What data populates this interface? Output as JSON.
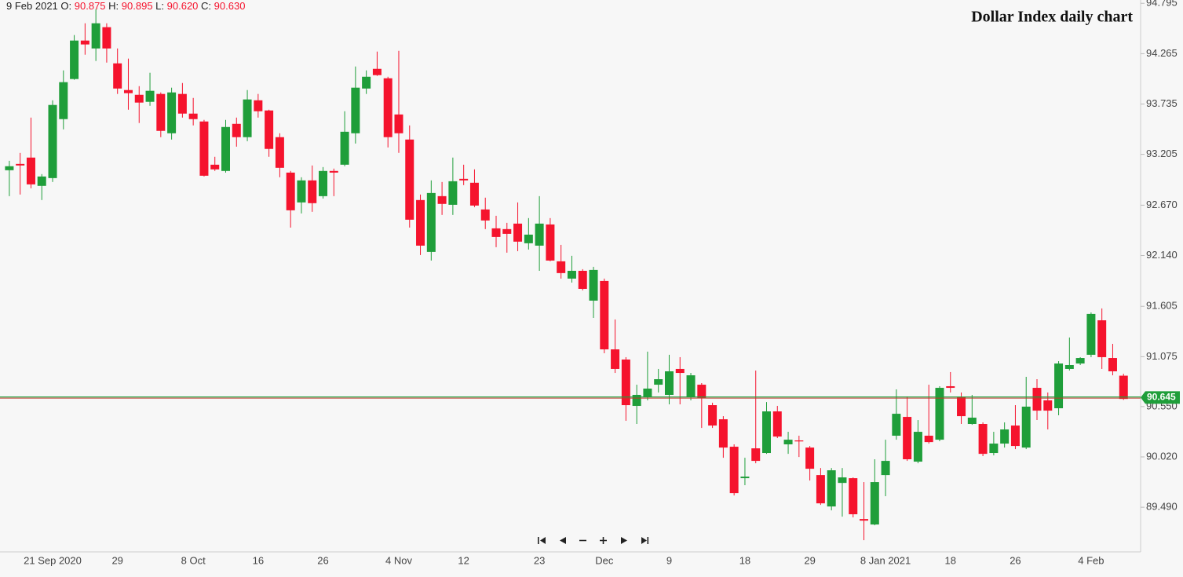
{
  "chart_data": {
    "type": "candlestick",
    "title": "Dollar Index daily chart",
    "ohlc_header": {
      "date": "9 Feb 2021",
      "fields": [
        {
          "label": "O:",
          "value": "90.875"
        },
        {
          "label": "H:",
          "value": "90.895"
        },
        {
          "label": "L:",
          "value": "90.620"
        },
        {
          "label": "C:",
          "value": "90.630"
        }
      ]
    },
    "categories": [
      null,
      null,
      null,
      null,
      "21 Sep 2020",
      null,
      null,
      null,
      null,
      null,
      "29",
      null,
      null,
      null,
      null,
      null,
      null,
      "8 Oct",
      null,
      null,
      null,
      null,
      null,
      "16",
      null,
      null,
      null,
      null,
      null,
      "26",
      null,
      null,
      null,
      null,
      null,
      null,
      "4 Nov",
      null,
      null,
      null,
      null,
      null,
      "12",
      null,
      null,
      null,
      null,
      null,
      null,
      "23",
      null,
      null,
      null,
      null,
      null,
      "Dec",
      null,
      null,
      null,
      null,
      null,
      "9",
      null,
      null,
      null,
      null,
      null,
      null,
      "18",
      null,
      null,
      null,
      null,
      null,
      "29",
      null,
      null,
      null,
      null,
      null,
      null,
      "8 Jan 2021",
      null,
      null,
      null,
      null,
      null,
      "18",
      null,
      null,
      null,
      null,
      null,
      "26",
      null,
      null,
      null,
      null,
      null,
      null,
      "4 Feb",
      null,
      null,
      null
    ],
    "open": [
      93.038,
      93.104,
      93.171,
      92.873,
      92.955,
      93.576,
      93.998,
      94.403,
      94.32,
      94.544,
      94.163,
      93.882,
      93.832,
      93.758,
      93.841,
      93.427,
      93.841,
      93.634,
      93.551,
      93.096,
      93.03,
      93.526,
      93.386,
      93.774,
      93.667,
      93.386,
      93.013,
      92.699,
      92.931,
      92.765,
      93.03,
      93.096,
      93.427,
      93.898,
      94.105,
      94.006,
      93.625,
      93.361,
      92.724,
      92.178,
      92.765,
      92.674,
      92.947,
      92.906,
      92.625,
      92.426,
      92.418,
      92.476,
      92.269,
      92.244,
      92.467,
      92.079,
      91.897,
      91.979,
      91.665,
      91.872,
      91.152,
      91.045,
      90.557,
      90.648,
      90.78,
      90.673,
      90.946,
      90.648,
      90.78,
      90.565,
      90.416,
      90.127,
      89.796,
      90.11,
      90.061,
      90.499,
      90.152,
      90.193,
      90.118,
      89.829,
      89.498,
      89.746,
      89.796,
      89.366,
      89.308,
      89.829,
      90.243,
      90.441,
      89.97,
      90.243,
      90.201,
      90.764,
      90.648,
      90.367,
      90.367,
      90.061,
      90.16,
      90.35,
      90.118,
      90.747,
      90.615,
      90.532,
      90.946,
      91.003,
      91.095,
      91.458,
      91.061,
      90.875
    ],
    "high": [
      93.137,
      93.22,
      93.592,
      92.997,
      93.774,
      94.089,
      94.461,
      94.585,
      94.734,
      94.585,
      94.32,
      94.213,
      93.923,
      94.064,
      93.857,
      93.907,
      93.956,
      93.799,
      93.568,
      93.179,
      93.568,
      93.592,
      93.882,
      93.841,
      93.675,
      93.427,
      93.03,
      92.964,
      93.088,
      93.071,
      93.055,
      93.659,
      94.13,
      94.089,
      94.287,
      94.022,
      94.295,
      93.51,
      92.782,
      92.931,
      92.914,
      93.171,
      93.096,
      93.047,
      92.749,
      92.558,
      92.484,
      92.699,
      92.534,
      92.765,
      92.534,
      92.252,
      92.137,
      91.996,
      92.021,
      91.897,
      91.467,
      91.07,
      90.78,
      91.128,
      90.946,
      91.095,
      91.07,
      90.904,
      90.797,
      90.59,
      90.449,
      90.152,
      90.011,
      90.929,
      90.598,
      90.557,
      90.284,
      90.243,
      90.135,
      89.903,
      89.903,
      89.903,
      89.804,
      89.755,
      89.995,
      90.201,
      90.731,
      90.656,
      90.408,
      90.78,
      90.764,
      90.913,
      90.698,
      90.673,
      90.383,
      90.284,
      90.383,
      90.565,
      90.863,
      90.838,
      90.698,
      91.028,
      91.277,
      91.07,
      91.541,
      91.583,
      91.21,
      90.895
    ],
    "low": [
      92.765,
      92.782,
      92.848,
      92.724,
      92.914,
      93.468,
      93.99,
      94.254,
      94.188,
      94.171,
      93.841,
      93.675,
      93.535,
      93.716,
      93.386,
      93.361,
      93.592,
      93.51,
      92.972,
      93.03,
      93.013,
      93.286,
      93.344,
      93.592,
      93.179,
      92.964,
      92.434,
      92.583,
      92.6,
      92.74,
      92.765,
      93.08,
      93.319,
      93.841,
      94.031,
      93.278,
      93.22,
      92.434,
      92.145,
      92.087,
      92.567,
      92.567,
      92.881,
      92.65,
      92.418,
      92.228,
      92.17,
      92.186,
      92.203,
      91.979,
      92.079,
      91.897,
      91.855,
      91.773,
      91.483,
      91.111,
      90.904,
      90.4,
      90.367,
      90.615,
      90.698,
      90.573,
      90.573,
      90.615,
      90.325,
      90.325,
      90.011,
      89.614,
      89.722,
      89.953,
      90.052,
      90.218,
      90.052,
      90.019,
      89.771,
      89.515,
      89.457,
      89.391,
      89.383,
      89.143,
      89.3,
      89.606,
      90.201,
      89.978,
      89.953,
      90.16,
      90.185,
      90.698,
      90.367,
      90.358,
      90.028,
      90.036,
      90.118,
      90.102,
      90.102,
      90.408,
      90.309,
      90.458,
      90.929,
      90.987,
      91.07,
      90.946,
      90.879,
      90.62
    ],
    "close": [
      93.08,
      93.088,
      92.889,
      92.972,
      93.725,
      93.965,
      94.403,
      94.362,
      94.585,
      94.32,
      93.898,
      93.849,
      93.75,
      93.874,
      93.452,
      93.857,
      93.634,
      93.576,
      92.98,
      93.047,
      93.493,
      93.386,
      93.783,
      93.659,
      93.262,
      93.063,
      92.616,
      92.931,
      92.691,
      93.03,
      93.013,
      93.443,
      93.907,
      94.022,
      94.039,
      93.386,
      93.427,
      92.517,
      92.244,
      92.798,
      92.683,
      92.922,
      92.931,
      92.666,
      92.509,
      92.335,
      92.368,
      92.286,
      92.36,
      92.476,
      92.087,
      91.955,
      91.979,
      91.789,
      91.988,
      91.152,
      90.946,
      90.565,
      90.673,
      90.739,
      90.838,
      90.921,
      90.904,
      90.879,
      90.64,
      90.35,
      90.118,
      89.639,
      89.812,
      89.978,
      90.499,
      90.234,
      90.201,
      90.185,
      89.895,
      89.531,
      89.879,
      89.804,
      89.416,
      89.349,
      89.755,
      89.978,
      90.474,
      89.995,
      90.284,
      90.176,
      90.747,
      90.747,
      90.449,
      90.433,
      90.052,
      90.16,
      90.309,
      90.135,
      90.549,
      90.507,
      90.507,
      91.003,
      90.987,
      91.061,
      91.525,
      91.07,
      90.921,
      90.63
    ],
    "up_color": "#1f9e3a",
    "down_color": "#f5132d",
    "last_price": 90.645,
    "ylim": [
      89.02,
      94.83
    ],
    "yticks": [
      94.795,
      94.265,
      93.735,
      93.205,
      {
        "value": 92.67,
        "label": "92.670"
      },
      {
        "value": 92.14,
        "label": "92.140"
      },
      91.605,
      91.075,
      {
        "value": 90.55,
        "label": "90.550"
      },
      {
        "value": 90.02,
        "label": "90.020"
      },
      {
        "value": 89.49,
        "label": "89.490"
      }
    ]
  }
}
